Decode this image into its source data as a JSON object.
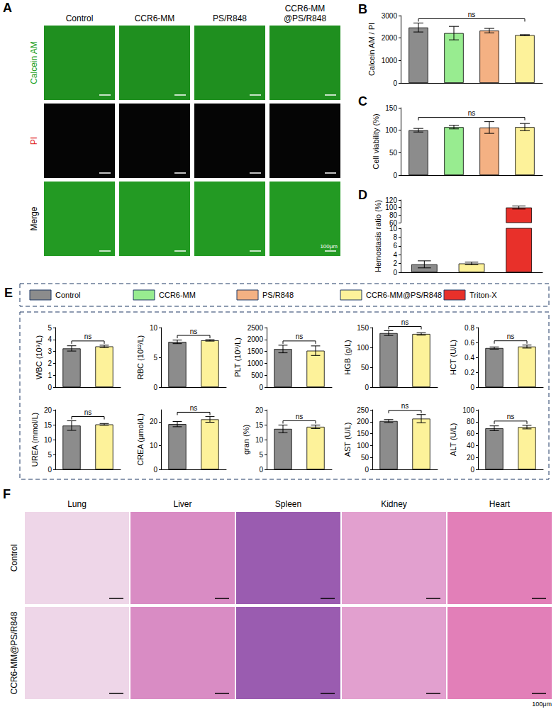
{
  "panel_letters": [
    "A",
    "B",
    "C",
    "D",
    "E",
    "F"
  ],
  "image_panels": [
    {
      "letter": "A",
      "columns": [
        "Control",
        "CCR6-MM",
        "PS/R848",
        "CCR6-MM@PS/R848"
      ],
      "rows": [
        "Calcein AM",
        "PI",
        "Merge"
      ],
      "scale_label": "100μm"
    },
    {
      "letter": "F",
      "columns": [
        "Lung",
        "Liver",
        "Spleen",
        "Kidney",
        "Heart"
      ],
      "rows": [
        "Control",
        "CCR6-MM@PS/R848"
      ],
      "scale_label": "100μm"
    }
  ],
  "shared_legend": [
    {
      "name": "Control",
      "color": "#8c8c8c"
    },
    {
      "name": "CCR6-MM",
      "color": "#98ec90"
    },
    {
      "name": "PS/R848",
      "color": "#f4b183"
    },
    {
      "name": "CCR6-MM@PS/R848",
      "color": "#fdf29a"
    },
    {
      "name": "Triton-X",
      "color": "#e8302a"
    }
  ],
  "chart_data": [
    {
      "panel": "B",
      "type": "bar",
      "y_label": "Calcein AM / PI",
      "categories": [
        "Control",
        "CCR6-MM",
        "PS/R848",
        "CCR6-MM@PS/R848"
      ],
      "values": [
        2470,
        2220,
        2330,
        2130
      ],
      "errors": [
        200,
        300,
        100,
        20
      ],
      "colors": [
        "#8c8c8c",
        "#98ec90",
        "#f4b183",
        "#fdf29a"
      ],
      "ylim": [
        0,
        3000
      ],
      "yticks": [
        0,
        1000,
        2000,
        3000
      ],
      "tick_labels": "y",
      "grid": false,
      "annotation": "ns"
    },
    {
      "panel": "C",
      "type": "bar",
      "y_label": "Cell viability (%)",
      "categories": [
        "Control",
        "CCR6-MM",
        "PS/R848",
        "CCR6-MM@PS/R848"
      ],
      "values": [
        100,
        107,
        106,
        107
      ],
      "errors": [
        4,
        4,
        13,
        8
      ],
      "colors": [
        "#8c8c8c",
        "#98ec90",
        "#f4b183",
        "#fdf29a"
      ],
      "ylim": [
        0,
        150
      ],
      "yticks": [
        0,
        50,
        100,
        150
      ],
      "tick_labels": "y",
      "grid": false,
      "annotation": "ns"
    },
    {
      "panel": "D",
      "type": "bar",
      "y_label": "Hemostasis ratio (%)",
      "categories": [
        "Control",
        "CCR6-MM@PS/R848",
        "Triton-X"
      ],
      "values": [
        1.8,
        2.0,
        100
      ],
      "errors": [
        0.8,
        0.3,
        4
      ],
      "colors": [
        "#8c8c8c",
        "#fdf29a",
        "#e8302a"
      ],
      "ylim_lower": [
        0,
        10
      ],
      "yticks_lower": [
        0,
        2,
        4,
        6,
        8,
        10
      ],
      "ylim_upper": [
        60,
        120
      ],
      "yticks_upper": [
        60,
        80,
        100,
        120
      ],
      "tick_labels": "y",
      "grid": false
    },
    {
      "panel": "E",
      "type": "bar",
      "y_label": "WBC (10⁹/L)",
      "categories": [
        "Control",
        "CCR6-MM@PS/R848"
      ],
      "values": [
        3.25,
        3.42
      ],
      "errors": [
        0.22,
        0.1
      ],
      "colors": [
        "#8c8c8c",
        "#fdf29a"
      ],
      "ylim": [
        0,
        5
      ],
      "yticks": [
        0,
        1,
        2,
        3,
        4,
        5
      ],
      "tick_labels": "y",
      "grid": false,
      "annotation": "ns"
    },
    {
      "panel": "E",
      "type": "bar",
      "y_label": "RBC (10¹²/L)",
      "categories": [
        "Control",
        "CCR6-MM@PS/R848"
      ],
      "values": [
        7.6,
        7.85
      ],
      "errors": [
        0.3,
        0.12
      ],
      "colors": [
        "#8c8c8c",
        "#fdf29a"
      ],
      "ylim": [
        0,
        10
      ],
      "yticks": [
        0,
        5,
        10
      ],
      "tick_labels": "y",
      "grid": false,
      "annotation": "ns"
    },
    {
      "panel": "E",
      "type": "bar",
      "y_label": "PLT (10⁹/L)",
      "categories": [
        "Control",
        "CCR6-MM@PS/R848"
      ],
      "values": [
        1600,
        1530
      ],
      "errors": [
        160,
        200
      ],
      "colors": [
        "#8c8c8c",
        "#fdf29a"
      ],
      "ylim": [
        0,
        2500
      ],
      "yticks": [
        0,
        500,
        1000,
        1500,
        2000,
        2500
      ],
      "tick_labels": "y",
      "grid": false,
      "annotation": "ns"
    },
    {
      "panel": "E",
      "type": "bar",
      "y_label": "HGB (g/L)",
      "categories": [
        "Control",
        "CCR6-MM@PS/R848"
      ],
      "values": [
        136,
        134
      ],
      "errors": [
        6,
        3
      ],
      "colors": [
        "#8c8c8c",
        "#fdf29a"
      ],
      "ylim": [
        0,
        150
      ],
      "yticks": [
        0,
        50,
        100,
        150
      ],
      "tick_labels": "y",
      "grid": false,
      "annotation": "ns"
    },
    {
      "panel": "E",
      "type": "bar",
      "y_label": "HCT (U/L)",
      "categories": [
        "Control",
        "CCR6-MM@PS/R848"
      ],
      "values": [
        0.525,
        0.545
      ],
      "errors": [
        0.015,
        0.02
      ],
      "colors": [
        "#8c8c8c",
        "#fdf29a"
      ],
      "ylim": [
        0,
        0.8
      ],
      "yticks": [
        0,
        0.2,
        0.4,
        0.6,
        0.8
      ],
      "tick_labels": "y",
      "grid": false,
      "annotation": "ns"
    },
    {
      "panel": "E",
      "type": "bar",
      "y_label": "UREA (mmol/L)",
      "categories": [
        "Control",
        "CCR6-MM@PS/R848"
      ],
      "values": [
        14.7,
        15.1
      ],
      "errors": [
        1.6,
        0.3
      ],
      "colors": [
        "#8c8c8c",
        "#fdf29a"
      ],
      "ylim": [
        0,
        20
      ],
      "yticks": [
        0,
        5,
        10,
        15,
        20
      ],
      "tick_labels": "y",
      "grid": false,
      "annotation": "ns"
    },
    {
      "panel": "E",
      "type": "bar",
      "y_label": "CREA (μmol/L)",
      "categories": [
        "Control",
        "CCR6-MM@PS/R848"
      ],
      "values": [
        19,
        21
      ],
      "errors": [
        1.1,
        1.2
      ],
      "colors": [
        "#8c8c8c",
        "#fdf29a"
      ],
      "ylim": [
        0,
        25
      ],
      "yticks": [
        0,
        10,
        20
      ],
      "tick_labels": "y",
      "grid": false,
      "annotation": "ns"
    },
    {
      "panel": "E",
      "type": "bar",
      "y_label": "gran (%)",
      "categories": [
        "Control",
        "CCR6-MM@PS/R848"
      ],
      "values": [
        13.6,
        14.3
      ],
      "errors": [
        1.3,
        0.6
      ],
      "colors": [
        "#8c8c8c",
        "#fdf29a"
      ],
      "ylim": [
        0,
        20
      ],
      "yticks": [
        0,
        5,
        10,
        15,
        20
      ],
      "tick_labels": "y",
      "grid": false,
      "annotation": "ns"
    },
    {
      "panel": "E",
      "type": "bar",
      "y_label": "AST (U/L)",
      "categories": [
        "Control",
        "CCR6-MM@PS/R848"
      ],
      "values": [
        203,
        213
      ],
      "errors": [
        6,
        17
      ],
      "colors": [
        "#8c8c8c",
        "#fdf29a"
      ],
      "ylim": [
        0,
        250
      ],
      "yticks": [
        0,
        50,
        100,
        150,
        200,
        250
      ],
      "tick_labels": "y",
      "grid": false,
      "annotation": "ns"
    },
    {
      "panel": "E",
      "type": "bar",
      "y_label": "ALT (U/L)",
      "categories": [
        "Control",
        "CCR6-MM@PS/R848"
      ],
      "values": [
        69,
        71
      ],
      "errors": [
        4,
        3
      ],
      "colors": [
        "#8c8c8c",
        "#fdf29a"
      ],
      "ylim": [
        0,
        100
      ],
      "yticks": [
        0,
        20,
        40,
        60,
        80,
        100
      ],
      "tick_labels": "y",
      "grid": false,
      "annotation": "ns"
    }
  ]
}
